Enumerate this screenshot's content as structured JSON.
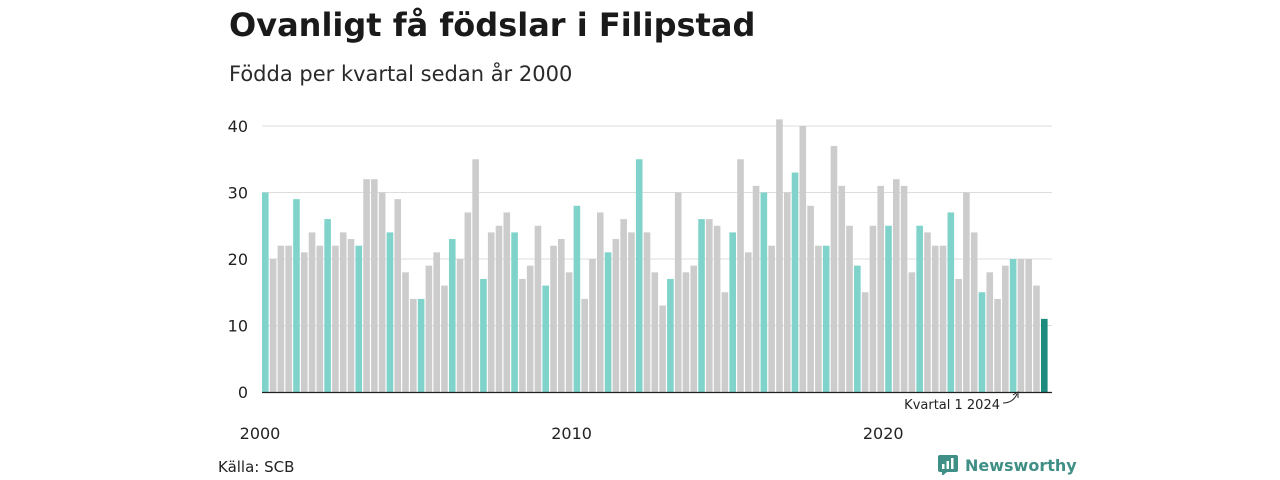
{
  "title": "Ovanligt få födslar i Filipstad",
  "subtitle": "Födda per kvartal sedan år 2000",
  "source": "Källa: SCB",
  "brand": "Newsworthy",
  "colors": {
    "q1": "#7fd3ca",
    "other": "#cccccc",
    "latest": "#1f8a7e",
    "grid": "#dddddd",
    "axis": "#222222",
    "brand": "#3f8f86"
  },
  "chart_data": {
    "type": "bar",
    "title": "Ovanligt få födslar i Filipstad",
    "subtitle": "Födda per kvartal sedan år 2000",
    "start": {
      "year": 2000,
      "quarter": 1
    },
    "values": [
      30,
      20,
      22,
      22,
      29,
      21,
      24,
      22,
      26,
      22,
      24,
      23,
      22,
      32,
      32,
      30,
      24,
      29,
      18,
      14,
      14,
      19,
      21,
      16,
      23,
      20,
      27,
      35,
      17,
      24,
      25,
      27,
      24,
      17,
      19,
      25,
      16,
      22,
      23,
      18,
      28,
      14,
      20,
      27,
      21,
      23,
      26,
      24,
      35,
      24,
      18,
      13,
      17,
      30,
      18,
      19,
      26,
      26,
      25,
      15,
      24,
      35,
      21,
      31,
      30,
      22,
      41,
      30,
      33,
      40,
      28,
      22,
      22,
      37,
      31,
      25,
      19,
      15,
      25,
      31,
      25,
      32,
      31,
      18,
      25,
      24,
      22,
      22,
      27,
      17,
      30,
      24,
      15,
      18,
      14,
      19,
      20,
      20,
      20,
      16,
      11
    ],
    "yticks": [
      0,
      10,
      20,
      30,
      40
    ],
    "ylim": [
      0,
      40
    ],
    "xticks": [
      "2000",
      "2010",
      "2020"
    ],
    "grid": true,
    "annotation": "Kvartal 1 2024"
  }
}
